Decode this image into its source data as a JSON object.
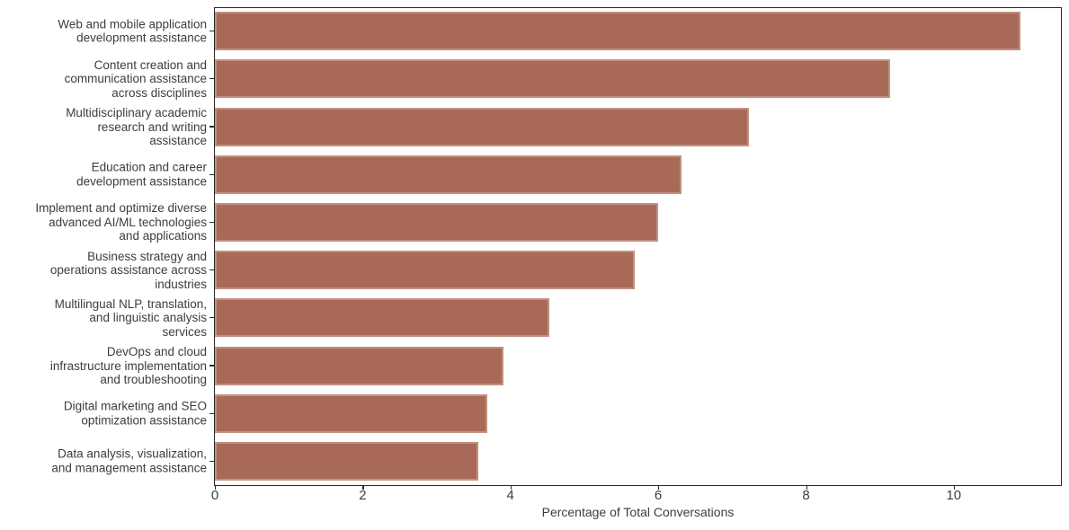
{
  "chart_data": {
    "type": "bar",
    "orientation": "horizontal",
    "title": "",
    "xlabel": "Percentage of Total Conversations",
    "ylabel": "",
    "xlim": [
      0,
      11.45
    ],
    "x_ticks": [
      "0",
      "2",
      "4",
      "6",
      "8",
      "10"
    ],
    "x_tick_values": [
      0,
      2,
      4,
      6,
      8,
      10
    ],
    "grid": false,
    "legend": "none",
    "bar_color": "#a86a57",
    "bar_edge_color": "#c29180",
    "spine_color": "#2a2a2a",
    "text_color": "#3d3d3d",
    "categories": [
      "Web and mobile application\ndevelopment assistance",
      "Content creation and\ncommunication assistance\nacross disciplines",
      "Multidisciplinary academic\nresearch and writing\nassistance",
      "Education and career\ndevelopment assistance",
      "Implement and optimize diverse\nadvanced AI/ML technologies\nand applications",
      "Business strategy and\noperations assistance across\nindustries",
      "Multilingual NLP, translation,\nand linguistic analysis\nservices",
      "DevOps and cloud\ninfrastructure implementation\nand troubleshooting",
      "Digital marketing and SEO\noptimization assistance",
      "Data analysis, visualization,\nand management assistance"
    ],
    "values": [
      10.9,
      9.14,
      7.23,
      6.31,
      6.0,
      5.68,
      4.52,
      3.91,
      3.69,
      3.57
    ]
  }
}
